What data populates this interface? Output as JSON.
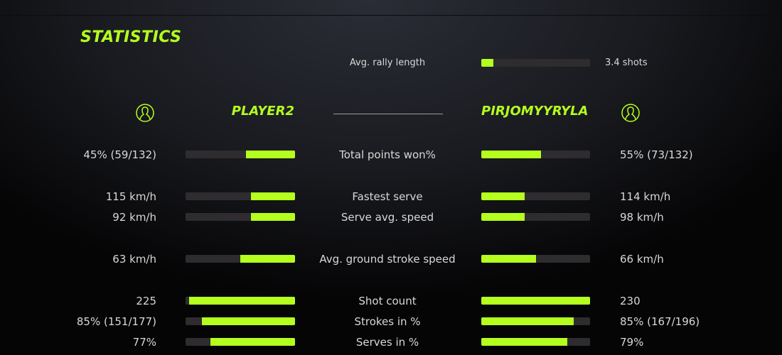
{
  "title": "STATISTICS",
  "accent": "#b4ff1e",
  "rally": {
    "label": "Avg. rally length",
    "value": "3.4 shots",
    "fraction": 0.11
  },
  "players": {
    "left": {
      "name": "PLAYER2",
      "icon": "user-icon"
    },
    "right": {
      "name": "PIRJOMYYRYLA",
      "icon": "user-icon"
    }
  },
  "stats": [
    {
      "label": "Total points won%",
      "left": "45% (59/132)",
      "right": "55% (73/132)",
      "left_fraction": 0.45,
      "right_fraction": 0.55
    },
    {
      "label": "Fastest serve",
      "left": "115 km/h",
      "right": "114 km/h",
      "left_fraction": 0.4,
      "right_fraction": 0.4
    },
    {
      "label": "Serve avg. speed",
      "left": "92 km/h",
      "right": "98 km/h",
      "left_fraction": 0.4,
      "right_fraction": 0.4
    },
    {
      "label": "Avg. ground stroke speed",
      "left": "63 km/h",
      "right": "66 km/h",
      "left_fraction": 0.5,
      "right_fraction": 0.5
    },
    {
      "label": "Shot count",
      "left": "225",
      "right": "230",
      "left_fraction": 0.97,
      "right_fraction": 1.0
    },
    {
      "label": "Strokes in %",
      "left": "85% (151/177)",
      "right": "85% (167/196)",
      "left_fraction": 0.85,
      "right_fraction": 0.85
    },
    {
      "label": "Serves in %",
      "left": "77%",
      "right": "79%",
      "left_fraction": 0.77,
      "right_fraction": 0.79
    }
  ]
}
